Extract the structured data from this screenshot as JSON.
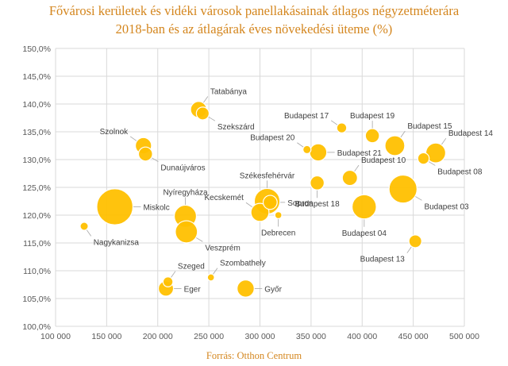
{
  "chart_data": {
    "type": "bubble",
    "title_line1": "Fővárosi kerületek és vidéki városok panellakásainak átlagos négyzetméterára",
    "title_line2": "2018-ban és az átlagárak éves növekedési üteme (%)",
    "source": "Forrás: Otthon Centrum",
    "xlim": [
      100000,
      500000
    ],
    "ylim": [
      100,
      150
    ],
    "x_ticks": [
      100000,
      150000,
      200000,
      250000,
      300000,
      350000,
      400000,
      450000,
      500000
    ],
    "x_tick_labels": [
      "100 000",
      "150 000",
      "200 000",
      "250 000",
      "300 000",
      "350 000",
      "400 000",
      "450 000",
      "500 000"
    ],
    "y_ticks": [
      100,
      105,
      110,
      115,
      120,
      125,
      130,
      135,
      140,
      145,
      150
    ],
    "y_tick_labels": [
      "100,0%",
      "105,0%",
      "110,0%",
      "115,0%",
      "120,0%",
      "125,0%",
      "130,0%",
      "135,0%",
      "140,0%",
      "145,0%",
      "150,0%"
    ],
    "grid": true,
    "colors": {
      "bubble": "#ffc000",
      "bubble_stroke": "#ffffff",
      "grid": "#d9d9d9",
      "axis_text": "#595959",
      "label": "#404040",
      "leader": "#a6a6a6",
      "title": "#d4861e"
    },
    "points": [
      {
        "name": "Tatabánya",
        "x": 240000,
        "y": 139.0,
        "size": 8,
        "label_pos": "up-right"
      },
      {
        "name": "Szekszárd",
        "x": 244000,
        "y": 138.3,
        "size": 5,
        "label_pos": "right-down"
      },
      {
        "name": "Szolnok",
        "x": 186000,
        "y": 132.5,
        "size": 8,
        "label_pos": "left-up"
      },
      {
        "name": "Dunaújváros",
        "x": 188000,
        "y": 131.0,
        "size": 6,
        "label_pos": "right-down"
      },
      {
        "name": "Miskolc",
        "x": 158000,
        "y": 121.5,
        "size": 40,
        "label_pos": "right"
      },
      {
        "name": "Nyíregyháza",
        "x": 227000,
        "y": 119.8,
        "size": 15,
        "label_pos": "up"
      },
      {
        "name": "Veszprém",
        "x": 228000,
        "y": 117.0,
        "size": 15,
        "label_pos": "right-down"
      },
      {
        "name": "Nagykanizsa",
        "x": 128000,
        "y": 118.0,
        "size": 2,
        "label_pos": "down-right"
      },
      {
        "name": "Kecskemét",
        "x": 300000,
        "y": 120.5,
        "size": 10,
        "label_pos": "left-up"
      },
      {
        "name": "Székesfehérvár",
        "x": 307000,
        "y": 122.5,
        "size": 20,
        "label_pos": "up"
      },
      {
        "name": "Sopron",
        "x": 310000,
        "y": 122.3,
        "size": 6,
        "label_pos": "right"
      },
      {
        "name": "Debrecen",
        "x": 318000,
        "y": 120.0,
        "size": 1.5,
        "label_pos": "down"
      },
      {
        "name": "Szeged",
        "x": 210000,
        "y": 108.0,
        "size": 3,
        "label_pos": "up-right"
      },
      {
        "name": "Eger",
        "x": 208000,
        "y": 106.8,
        "size": 7,
        "label_pos": "right"
      },
      {
        "name": "Szombathely",
        "x": 252000,
        "y": 108.8,
        "size": 1.5,
        "label_pos": "up-right"
      },
      {
        "name": "Győr",
        "x": 286000,
        "y": 106.8,
        "size": 9,
        "label_pos": "right"
      },
      {
        "name": "Budapest 17",
        "x": 380000,
        "y": 135.7,
        "size": 3,
        "label_pos": "left-up"
      },
      {
        "name": "Budapest 19",
        "x": 410000,
        "y": 134.3,
        "size": 6,
        "label_pos": "up"
      },
      {
        "name": "Budapest 15",
        "x": 432000,
        "y": 132.5,
        "size": 12,
        "label_pos": "up-right"
      },
      {
        "name": "Budapest 14",
        "x": 472000,
        "y": 131.2,
        "size": 12,
        "label_pos": "up-right"
      },
      {
        "name": "Budapest 20",
        "x": 346000,
        "y": 131.8,
        "size": 2,
        "label_pos": "left-up"
      },
      {
        "name": "Budapest 21",
        "x": 357000,
        "y": 131.3,
        "size": 9,
        "label_pos": "right"
      },
      {
        "name": "Budapest 08",
        "x": 460000,
        "y": 130.2,
        "size": 4,
        "label_pos": "right-down"
      },
      {
        "name": "Budapest 10",
        "x": 388000,
        "y": 126.7,
        "size": 7,
        "label_pos": "up-right"
      },
      {
        "name": "Budapest 18",
        "x": 356000,
        "y": 125.8,
        "size": 6,
        "label_pos": "down"
      },
      {
        "name": "Budapest 03",
        "x": 440000,
        "y": 124.7,
        "size": 24,
        "label_pos": "right-down"
      },
      {
        "name": "Budapest 04",
        "x": 402000,
        "y": 121.5,
        "size": 18,
        "label_pos": "down"
      },
      {
        "name": "Budapest 13",
        "x": 452000,
        "y": 115.3,
        "size": 5,
        "label_pos": "down-left"
      }
    ]
  }
}
